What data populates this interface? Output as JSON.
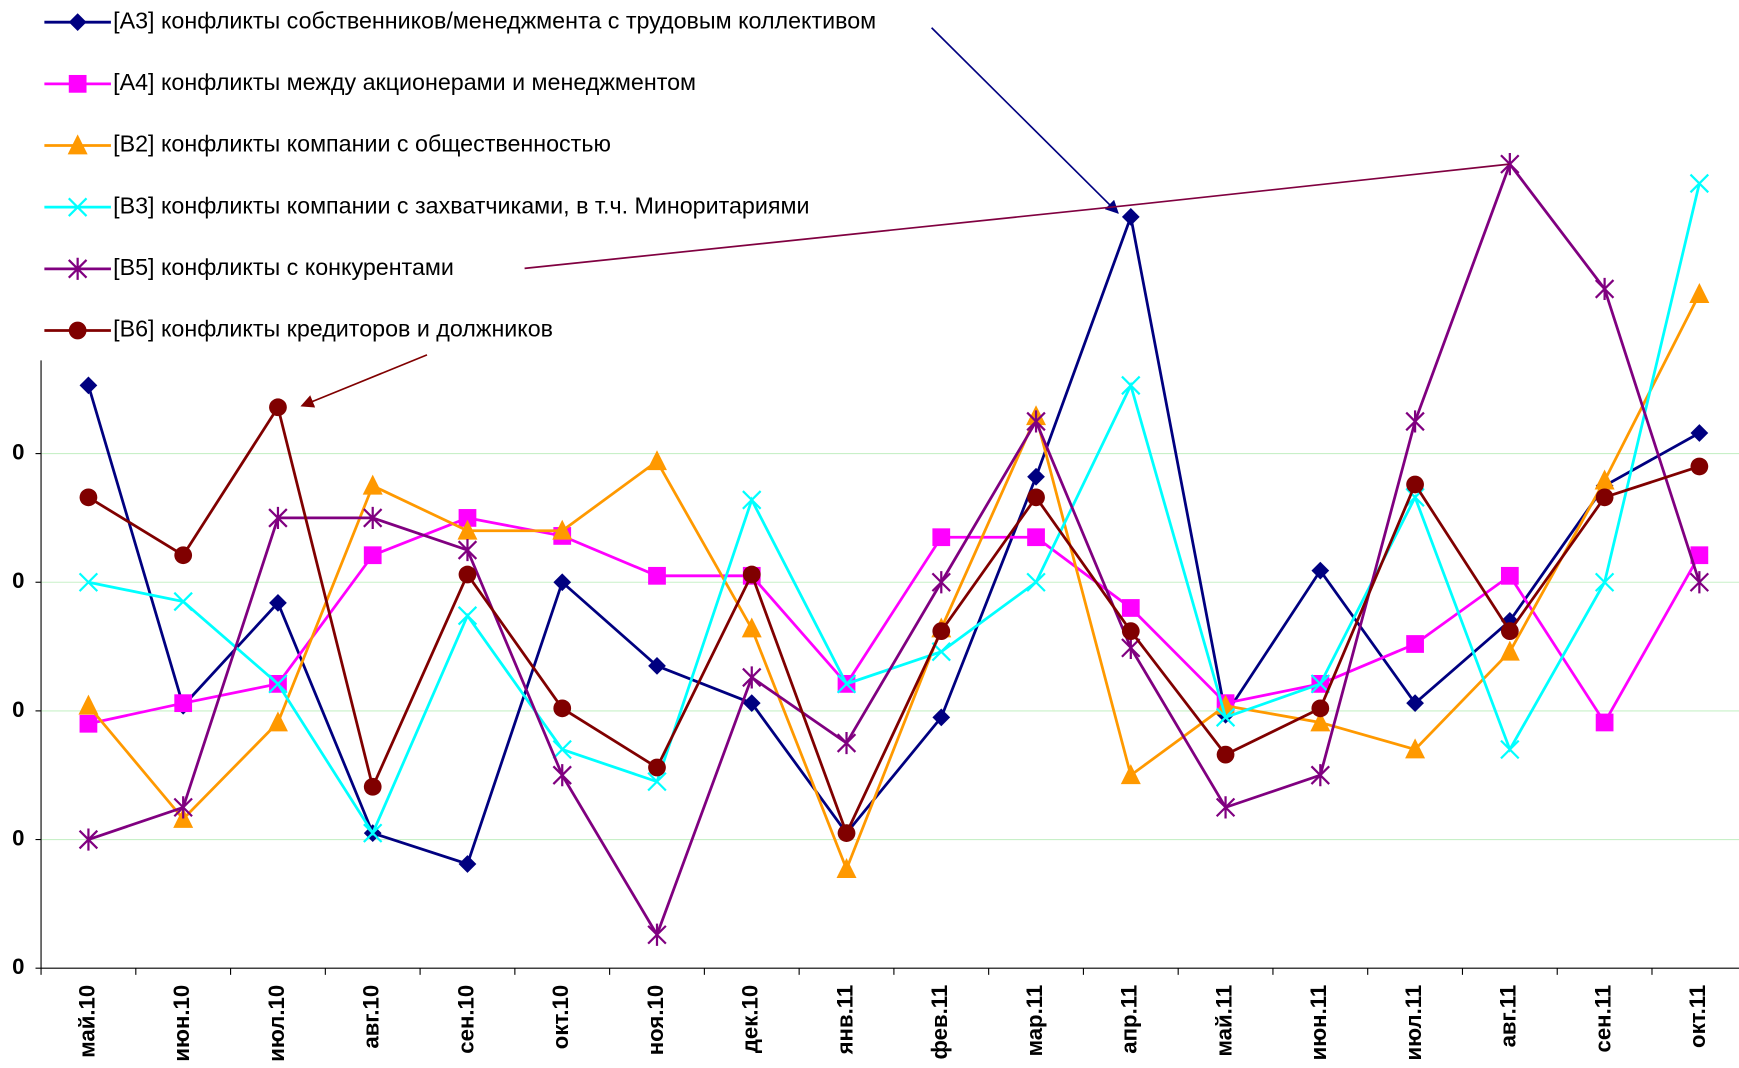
{
  "chart_data": {
    "type": "line",
    "categories": [
      "май.10",
      "июн.10",
      "июл.10",
      "авг.10",
      "сен.10",
      "окт.10",
      "ноя.10",
      "дек.10",
      "янв.11",
      "фев.11",
      "мар.11",
      "апр.11",
      "май.11",
      "июн.11",
      "июл.11",
      "авг.11",
      "сен.11",
      "окт.11"
    ],
    "series": [
      {
        "name": "[A3] конфликты собственников/менеджмента с трудовым коллективом",
        "color": "#000080",
        "marker": "diamond",
        "values": [
          45.3,
          20.4,
          28.4,
          10.5,
          8.1,
          30,
          23.5,
          20.6,
          10.5,
          19.5,
          38.2,
          58.4,
          19.7,
          30.9,
          20.6,
          27,
          37.5,
          41.6
        ]
      },
      {
        "name": "[A4] конфликты между акционерами и менеджментом",
        "color": "#ff00ff",
        "marker": "square",
        "values": [
          19,
          20.6,
          22.1,
          32.1,
          35,
          33.6,
          30.5,
          30.5,
          22.1,
          33.5,
          33.5,
          28,
          20.6,
          22.1,
          25.2,
          30.5,
          19.1,
          32.1
        ]
      },
      {
        "name": "[B2] конфликты компании с общественностью",
        "color": "#ff9900",
        "marker": "triangle",
        "values": [
          20.4,
          11.6,
          19.1,
          37.5,
          34,
          34,
          39.4,
          26.4,
          7.7,
          26.4,
          42.9,
          15,
          20.4,
          19.1,
          17,
          24.6,
          37.9,
          52.4
        ]
      },
      {
        "name": "[B3] конфликты компании с захватчиками, в т.ч. Миноритариями",
        "color": "#00ffff",
        "marker": "x",
        "values": [
          30,
          28.5,
          22.1,
          10.5,
          27.4,
          17,
          14.5,
          36.4,
          22.1,
          24.6,
          30,
          45.3,
          19.5,
          22.1,
          36.6,
          17,
          30,
          61
        ]
      },
      {
        "name": "[B5] конфликты с конкурентами",
        "color": "#800080",
        "marker": "star",
        "values": [
          10,
          12.5,
          35,
          35,
          32.5,
          15,
          2.6,
          22.6,
          17.5,
          30,
          42.5,
          24.9,
          12.5,
          15,
          42.5,
          62.5,
          52.8,
          30
        ]
      },
      {
        "name": "[B6] конфликты кредиторов и должников",
        "color": "#800000",
        "marker": "circle",
        "values": [
          36.6,
          32.1,
          43.6,
          14.1,
          30.6,
          20.2,
          15.6,
          30.6,
          10.5,
          26.2,
          36.6,
          26.2,
          16.6,
          20.2,
          37.6,
          26.2,
          36.6,
          39
        ]
      }
    ],
    "ylim": [
      0,
      70
    ],
    "yticks": [
      0,
      {
        "value": 10,
        "label": "0"
      },
      {
        "value": 20,
        "label": "0"
      },
      {
        "value": 30,
        "label": "0"
      },
      {
        "value": 40,
        "label": "0"
      }
    ],
    "grid": true
  }
}
